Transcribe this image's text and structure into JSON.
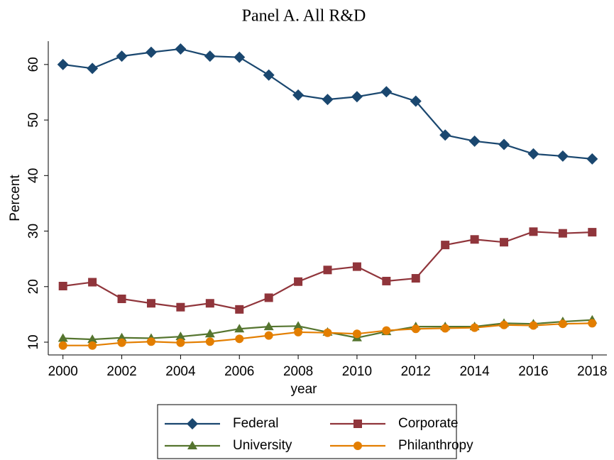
{
  "chart_data": {
    "type": "line",
    "title": "Panel A. All R&D",
    "x_label": "year",
    "y_label": "Percent",
    "x": [
      2000,
      2001,
      2002,
      2003,
      2004,
      2005,
      2006,
      2007,
      2008,
      2009,
      2010,
      2011,
      2012,
      2013,
      2014,
      2015,
      2016,
      2017,
      2018
    ],
    "series": [
      {
        "name": "Federal",
        "color": "#1a476f",
        "marker": "diamond",
        "values": [
          60,
          59.3,
          61.5,
          62.2,
          62.8,
          61.5,
          61.3,
          58.1,
          54.5,
          53.7,
          54.2,
          55.1,
          53.4,
          47.3,
          46.2,
          45.6,
          43.9,
          43.5,
          43.0
        ]
      },
      {
        "name": "Corporate",
        "color": "#90353b",
        "marker": "square",
        "values": [
          20.1,
          20.8,
          17.8,
          17.0,
          16.3,
          17.0,
          15.9,
          18.0,
          20.9,
          23.0,
          23.6,
          21.0,
          21.5,
          27.5,
          28.5,
          28.0,
          29.9,
          29.6,
          29.8
        ]
      },
      {
        "name": "University",
        "color": "#55752f",
        "marker": "triangle",
        "values": [
          10.7,
          10.5,
          10.8,
          10.7,
          11.0,
          11.5,
          12.4,
          12.8,
          12.9,
          11.8,
          10.8,
          11.9,
          12.8,
          12.8,
          12.8,
          13.4,
          13.3,
          13.7,
          14.0
        ]
      },
      {
        "name": "Philanthropy",
        "color": "#e37e00",
        "marker": "circle",
        "values": [
          9.4,
          9.4,
          9.9,
          10.1,
          9.9,
          10.1,
          10.6,
          11.2,
          11.8,
          11.7,
          11.5,
          12.1,
          12.4,
          12.5,
          12.6,
          13.1,
          13.0,
          13.3,
          13.4
        ]
      }
    ],
    "xlim": [
      1999.5,
      2018.5
    ],
    "xticks": [
      2000,
      2002,
      2004,
      2006,
      2008,
      2010,
      2012,
      2014,
      2016,
      2018
    ],
    "ylim": [
      7.7,
      64.2
    ],
    "yticks": [
      10,
      20,
      30,
      40,
      50,
      60
    ],
    "grid": false
  }
}
